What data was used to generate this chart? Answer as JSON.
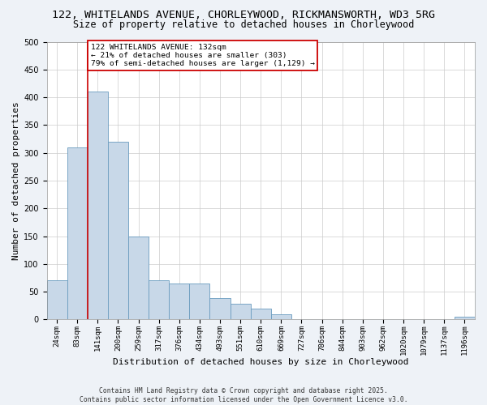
{
  "title_line1": "122, WHITELANDS AVENUE, CHORLEYWOOD, RICKMANSWORTH, WD3 5RG",
  "title_line2": "Size of property relative to detached houses in Chorleywood",
  "xlabel": "Distribution of detached houses by size in Chorleywood",
  "ylabel": "Number of detached properties",
  "categories": [
    "24sqm",
    "83sqm",
    "141sqm",
    "200sqm",
    "259sqm",
    "317sqm",
    "376sqm",
    "434sqm",
    "493sqm",
    "551sqm",
    "610sqm",
    "669sqm",
    "727sqm",
    "786sqm",
    "844sqm",
    "903sqm",
    "962sqm",
    "1020sqm",
    "1079sqm",
    "1137sqm",
    "1196sqm"
  ],
  "values": [
    70,
    310,
    410,
    320,
    150,
    70,
    65,
    65,
    38,
    28,
    20,
    10,
    0,
    0,
    0,
    0,
    0,
    0,
    0,
    0,
    5
  ],
  "bar_color": "#c8d8e8",
  "bar_edge_color": "#6a9cbf",
  "vline_color": "#cc0000",
  "annotation_text": "122 WHITELANDS AVENUE: 132sqm\n← 21% of detached houses are smaller (303)\n79% of semi-detached houses are larger (1,129) →",
  "annotation_box_color": "#ffffff",
  "annotation_box_edge_color": "#cc0000",
  "ylim": [
    0,
    500
  ],
  "yticks": [
    0,
    50,
    100,
    150,
    200,
    250,
    300,
    350,
    400,
    450,
    500
  ],
  "footnote": "Contains HM Land Registry data © Crown copyright and database right 2025.\nContains public sector information licensed under the Open Government Licence v3.0.",
  "bg_color": "#eef2f7",
  "plot_bg_color": "#ffffff",
  "grid_color": "#cccccc",
  "title_fontsize": 9.5,
  "subtitle_fontsize": 8.5,
  "tick_fontsize": 6.5,
  "label_fontsize": 8,
  "footnote_fontsize": 5.8
}
